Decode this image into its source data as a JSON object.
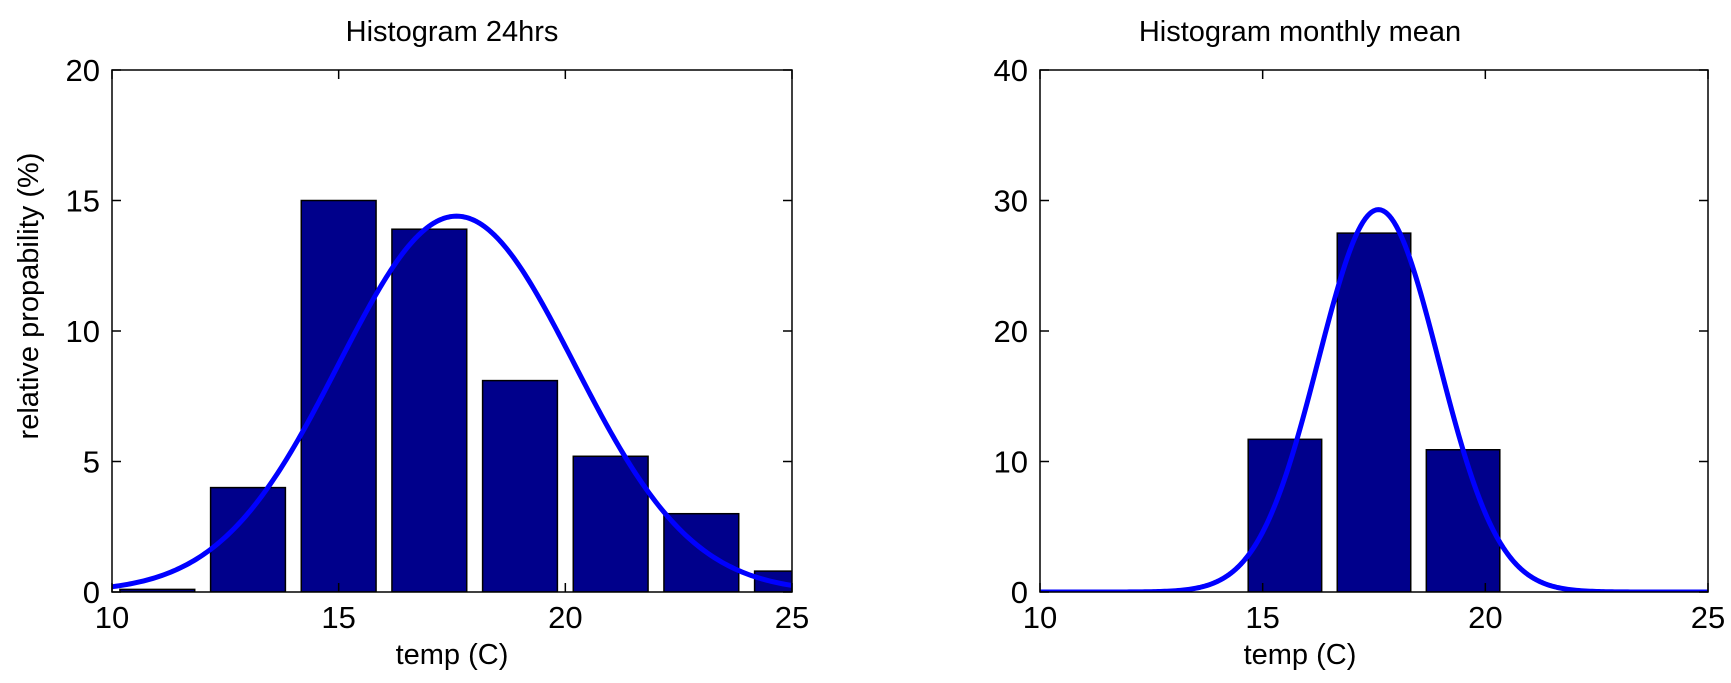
{
  "chart_data": [
    {
      "type": "bar",
      "title": "Histogram 24hrs",
      "xlabel": "temp (C)",
      "ylabel": "relative propability (%)",
      "xlim": [
        10,
        25
      ],
      "ylim": [
        0,
        20
      ],
      "xticks": [
        10,
        15,
        20,
        25
      ],
      "yticks": [
        0,
        5,
        10,
        15,
        20
      ],
      "grid": false,
      "bar_width": 1.65,
      "bars": [
        {
          "x": 11,
          "value": 0.1
        },
        {
          "x": 13,
          "value": 4.0
        },
        {
          "x": 15,
          "value": 15.0
        },
        {
          "x": 17,
          "value": 13.9
        },
        {
          "x": 19,
          "value": 8.1
        },
        {
          "x": 21,
          "value": 5.2
        },
        {
          "x": 23,
          "value": 3.0
        },
        {
          "x": 25,
          "value": 0.8
        }
      ],
      "curve": {
        "type": "normal",
        "mean": 17.6,
        "sd": 2.6,
        "peak": 14.4,
        "x_range": [
          10,
          25
        ]
      },
      "colors": {
        "bar": "#00008B",
        "curve": "#0000FF"
      }
    },
    {
      "type": "bar",
      "title": "Histogram monthly mean",
      "xlabel": "temp (C)",
      "ylabel": "",
      "xlim": [
        10,
        25
      ],
      "ylim": [
        0,
        40
      ],
      "xticks": [
        10,
        15,
        20,
        25
      ],
      "yticks": [
        0,
        10,
        20,
        30,
        40
      ],
      "grid": false,
      "bar_width": 1.65,
      "bars": [
        {
          "x": 15.5,
          "value": 11.7
        },
        {
          "x": 17.5,
          "value": 27.5
        },
        {
          "x": 19.5,
          "value": 10.9
        }
      ],
      "curve": {
        "type": "normal",
        "mean": 17.6,
        "sd": 1.35,
        "peak": 29.3,
        "x_range": [
          10,
          25
        ]
      },
      "colors": {
        "bar": "#00008B",
        "curve": "#0000FF"
      }
    }
  ]
}
